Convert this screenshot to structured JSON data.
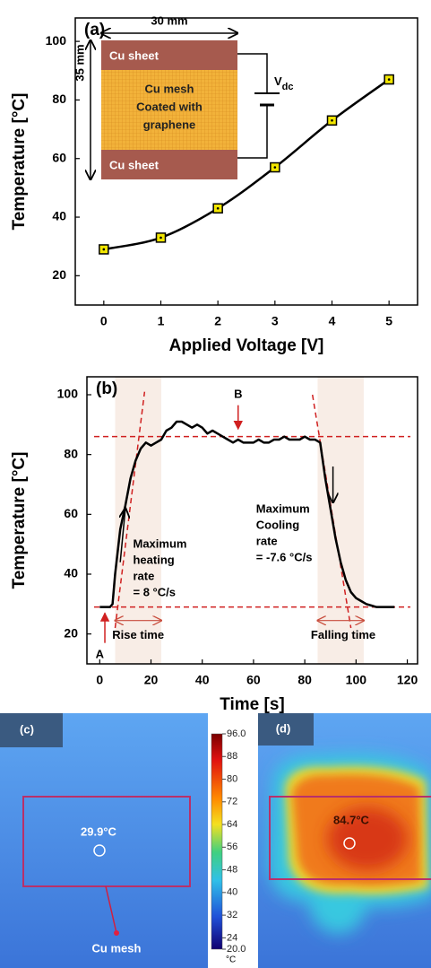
{
  "chart_data": [
    {
      "type": "line",
      "label": "(a)",
      "x": [
        0,
        1,
        2,
        3,
        4,
        5
      ],
      "values": [
        29,
        33,
        43,
        57,
        73,
        87
      ],
      "color": "#000000",
      "marker_color": "#f2e600",
      "smooth": true,
      "xlim": [
        -0.5,
        5.5
      ],
      "ylim": [
        10,
        108
      ],
      "xticks": [
        0,
        1,
        2,
        3,
        4,
        5
      ],
      "yticks": [
        20,
        40,
        60,
        80,
        100
      ],
      "x_label": "Applied Voltage [V]",
      "y_label": "Temperature [°C]",
      "inset": {
        "width": "30 mm",
        "height": "35 mm",
        "top": "Cu sheet",
        "middle": [
          "Cu mesh",
          "Coated with",
          "graphene"
        ],
        "bottom": "Cu sheet",
        "source": "V",
        "source_sub": "dc"
      }
    },
    {
      "type": "line",
      "label": "(b)",
      "x": [
        0,
        2,
        4,
        5,
        6,
        8,
        10,
        12,
        14,
        16,
        18,
        20,
        22,
        24,
        26,
        28,
        30,
        32,
        34,
        36,
        38,
        40,
        42,
        44,
        46,
        48,
        50,
        52,
        54,
        56,
        58,
        60,
        62,
        64,
        66,
        68,
        70,
        72,
        74,
        76,
        78,
        80,
        82,
        84,
        86,
        88,
        90,
        92,
        94,
        96,
        98,
        100,
        102,
        104,
        106,
        108,
        110,
        112,
        115
      ],
      "values": [
        29,
        29,
        29,
        30,
        40,
        55,
        63,
        72,
        78,
        82,
        84,
        83,
        84,
        85,
        88,
        89,
        91,
        91,
        90,
        89,
        90,
        89,
        87,
        88,
        87,
        86,
        85,
        84,
        85,
        84,
        84,
        84,
        85,
        84,
        84,
        85,
        85,
        86,
        85,
        85,
        85,
        86,
        85,
        85,
        84,
        72,
        62,
        52,
        44,
        38,
        34,
        32,
        31,
        30,
        29.5,
        29,
        29,
        29,
        29
      ],
      "color": "#000000",
      "xlim": [
        -5,
        124
      ],
      "ylim": [
        10,
        106
      ],
      "xticks": [
        0,
        20,
        40,
        60,
        80,
        100,
        120
      ],
      "yticks": [
        20,
        40,
        60,
        80,
        100
      ],
      "x_label": "Time [s]",
      "y_label": "Temperature [°C]",
      "hlines": [
        86,
        29
      ],
      "shaded": [
        [
          6,
          24
        ],
        [
          85,
          103
        ]
      ],
      "tangents": [
        {
          "x": [
            6,
            17.5
          ],
          "y": [
            22,
            101
          ]
        },
        {
          "x": [
            83,
            98
          ],
          "y": [
            100,
            22
          ]
        }
      ],
      "annotations": {
        "A": "A",
        "B": "B",
        "heating": [
          "Maximum",
          "heating",
          "rate",
          "= 8 °C/s"
        ],
        "cooling": [
          "Maximum",
          "Cooling",
          "rate",
          "= -7.6 °C/s"
        ],
        "rise": "Rise time",
        "fall": "Falling time"
      }
    }
  ],
  "colorbar": {
    "lim": [
      20,
      96
    ],
    "unit": "°C",
    "ticks": [
      {
        "value": 96,
        "label": "96.0"
      },
      88,
      80,
      72,
      64,
      56,
      48,
      40,
      32,
      24,
      {
        "value": 20,
        "label": "20.0"
      }
    ]
  },
  "panels": [
    {
      "label": "(c)",
      "temperature": "29.9°C",
      "target": "Cu mesh"
    },
    {
      "label": "(d)",
      "temperature": "84.7°C"
    }
  ]
}
